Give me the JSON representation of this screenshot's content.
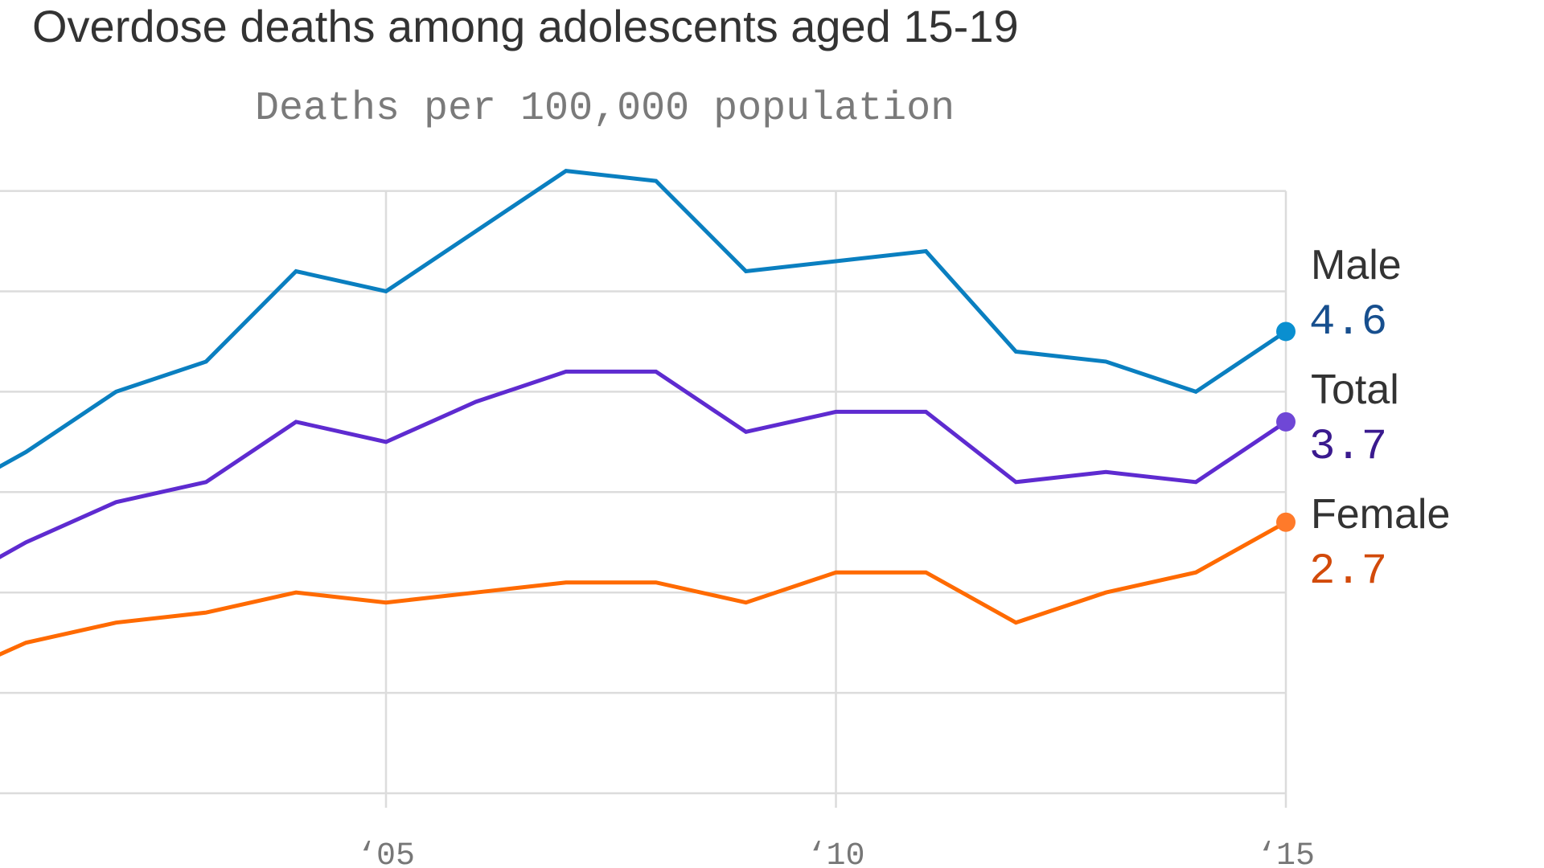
{
  "chart_data": {
    "type": "line",
    "title": "Overdose deaths among adolescents aged 15-19",
    "subtitle": "Deaths per 100,000 population",
    "xlabel": "",
    "ylabel": "Deaths per 100,000 population",
    "x": [
      2000,
      2001,
      2002,
      2003,
      2004,
      2005,
      2006,
      2007,
      2008,
      2009,
      2010,
      2011,
      2012,
      2013,
      2014,
      2015
    ],
    "x_ticks": [
      {
        "value": 2005,
        "label": "‘05"
      },
      {
        "value": 2010,
        "label": "‘10"
      },
      {
        "value": 2015,
        "label": "‘15"
      }
    ],
    "ylim": [
      0,
      6
    ],
    "y_gridlines": [
      0,
      1,
      2,
      3,
      4,
      5,
      6
    ],
    "grid": true,
    "legend": "direct labels at right end of lines",
    "series": [
      {
        "name": "Male",
        "end_label": "4.6",
        "color": "#0a7fc0",
        "dot_color": "#0a8fd0",
        "value_color": "#174f8e",
        "values": [
          2.9,
          3.4,
          4.0,
          4.3,
          5.2,
          5.0,
          5.6,
          6.2,
          6.1,
          5.2,
          5.3,
          5.4,
          4.4,
          4.3,
          4.0,
          4.6
        ]
      },
      {
        "name": "Total",
        "end_label": "3.7",
        "color": "#5e2bd0",
        "dot_color": "#6f47d6",
        "value_color": "#3a1a8e",
        "values": [
          2.0,
          2.5,
          2.9,
          3.1,
          3.7,
          3.5,
          3.9,
          4.2,
          4.2,
          3.6,
          3.8,
          3.8,
          3.1,
          3.2,
          3.1,
          3.7
        ]
      },
      {
        "name": "Female",
        "end_label": "2.7",
        "color": "#ff6a00",
        "dot_color": "#ff7a2a",
        "value_color": "#d24a0a",
        "values": [
          1.1,
          1.5,
          1.7,
          1.8,
          2.0,
          1.9,
          2.0,
          2.1,
          2.1,
          1.9,
          2.2,
          2.2,
          1.7,
          2.0,
          2.2,
          2.7
        ]
      }
    ]
  }
}
